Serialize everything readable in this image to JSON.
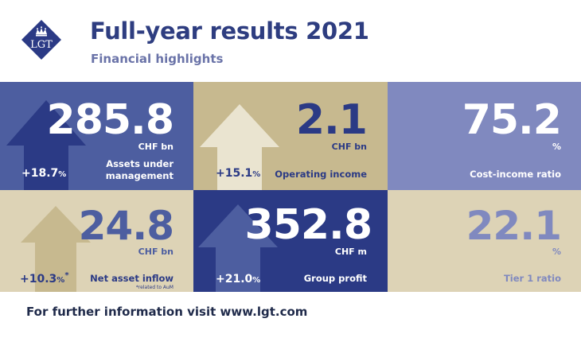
{
  "header": {
    "logo_text": "LGT",
    "title": "Full-year results 2021",
    "subtitle": "Financial highlights"
  },
  "tiles": [
    {
      "value": "285.8",
      "unit": "CHF bn",
      "label_line1": "Assets under",
      "label_line2": "management",
      "change": "+18.7",
      "change_unit": "%",
      "change_fraction": 0.187
    },
    {
      "value": "2.1",
      "unit": "CHF bn",
      "label_line1": "Operating income",
      "change": "+15.1",
      "change_unit": "%",
      "change_fraction": 0.151
    },
    {
      "value": "75.2",
      "unit": "%",
      "label_line1": "Cost-income ratio"
    },
    {
      "value": "24.8",
      "unit": "CHF bn",
      "label_line1": "Net asset inflow",
      "change": "+10.3",
      "change_unit": "%",
      "change_mark": "*",
      "note": "*related to AuM",
      "change_fraction": 0.103
    },
    {
      "value": "352.8",
      "unit": "CHF m",
      "label_line1": "Group profit",
      "change": "+21.0",
      "change_unit": "%",
      "change_fraction": 0.21
    },
    {
      "value": "22.1",
      "unit": "%",
      "label_line1": "Tier 1 ratio"
    }
  ],
  "colors": {
    "navy": "#2b3a85",
    "slate": "#4d5ea0",
    "periwinkle": "#8089bf",
    "gold": "#c7b98f",
    "sand": "#ddd3b6",
    "cream": "#eae4d0",
    "footer_text": "#1f2a4a"
  },
  "footer": {
    "text": "For further information visit www.lgt.com"
  }
}
